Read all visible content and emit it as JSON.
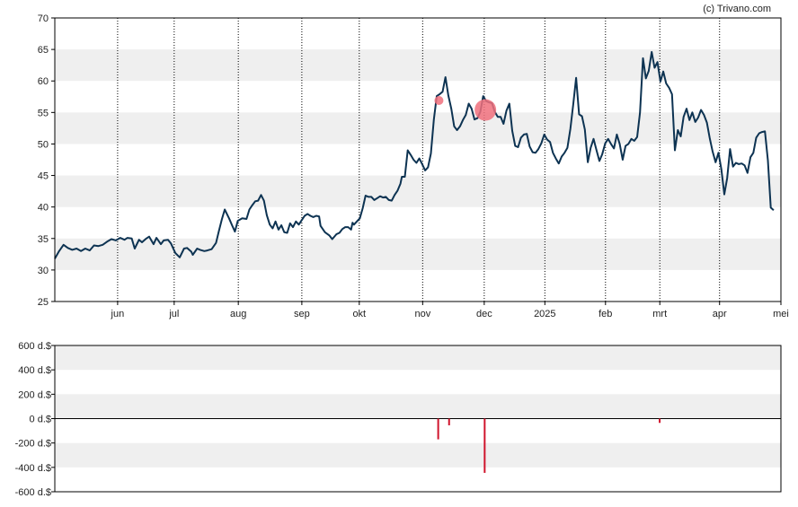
{
  "credit": "(c) Trivano.com",
  "colors": {
    "price_line": "#0d3352",
    "band": "#efefef",
    "insider_bar": "#d0142c",
    "marker": "#f0707d"
  },
  "chart_data": [
    {
      "type": "line",
      "name": "price",
      "title": "",
      "xlabel": "",
      "ylabel": "",
      "ylim": [
        25,
        70
      ],
      "yticks": [
        25,
        30,
        35,
        40,
        45,
        50,
        55,
        60,
        65,
        70
      ],
      "grid": "alternating horizontal bands, dotted vertical month lines",
      "x_ticks": [
        {
          "label": "jun",
          "pos": 0.0865
        },
        {
          "label": "jul",
          "pos": 0.1644
        },
        {
          "label": "aug",
          "pos": 0.2527
        },
        {
          "label": "sep",
          "pos": 0.3402
        },
        {
          "label": "okt",
          "pos": 0.4193
        },
        {
          "label": "nov",
          "pos": 0.5066
        },
        {
          "label": "dec",
          "pos": 0.5914
        },
        {
          "label": "2025",
          "pos": 0.6749
        },
        {
          "label": "feb",
          "pos": 0.7584
        },
        {
          "label": "mrt",
          "pos": 0.8332
        },
        {
          "label": "apr",
          "pos": 0.9155
        },
        {
          "label": "mei",
          "pos": 1.0
        }
      ],
      "points": [
        [
          0.0,
          31.8
        ],
        [
          0.006,
          33.0
        ],
        [
          0.012,
          34.0
        ],
        [
          0.018,
          33.5
        ],
        [
          0.024,
          33.2
        ],
        [
          0.03,
          33.4
        ],
        [
          0.036,
          33.0
        ],
        [
          0.042,
          33.4
        ],
        [
          0.048,
          33.1
        ],
        [
          0.054,
          33.9
        ],
        [
          0.06,
          33.8
        ],
        [
          0.066,
          34.0
        ],
        [
          0.072,
          34.5
        ],
        [
          0.078,
          34.9
        ],
        [
          0.084,
          34.7
        ],
        [
          0.09,
          35.1
        ],
        [
          0.096,
          34.8
        ],
        [
          0.1,
          35.1
        ],
        [
          0.106,
          35.0
        ],
        [
          0.11,
          33.4
        ],
        [
          0.116,
          34.8
        ],
        [
          0.12,
          34.4
        ],
        [
          0.126,
          35.0
        ],
        [
          0.13,
          35.3
        ],
        [
          0.136,
          34.1
        ],
        [
          0.14,
          35.1
        ],
        [
          0.146,
          34.1
        ],
        [
          0.15,
          34.7
        ],
        [
          0.156,
          34.8
        ],
        [
          0.16,
          34.2
        ],
        [
          0.166,
          32.7
        ],
        [
          0.172,
          32.0
        ],
        [
          0.178,
          33.4
        ],
        [
          0.182,
          33.5
        ],
        [
          0.188,
          32.9
        ],
        [
          0.19,
          32.4
        ],
        [
          0.196,
          33.4
        ],
        [
          0.2,
          33.2
        ],
        [
          0.206,
          33.0
        ],
        [
          0.21,
          33.1
        ],
        [
          0.216,
          33.3
        ],
        [
          0.222,
          34.3
        ],
        [
          0.226,
          36.2
        ],
        [
          0.23,
          38.0
        ],
        [
          0.234,
          39.6
        ],
        [
          0.24,
          38.2
        ],
        [
          0.244,
          37.1
        ],
        [
          0.248,
          36.1
        ],
        [
          0.252,
          37.8
        ],
        [
          0.258,
          38.2
        ],
        [
          0.264,
          38.1
        ],
        [
          0.268,
          39.6
        ],
        [
          0.272,
          40.3
        ],
        [
          0.276,
          40.9
        ],
        [
          0.28,
          41.0
        ],
        [
          0.284,
          41.9
        ],
        [
          0.288,
          41.0
        ],
        [
          0.292,
          38.7
        ],
        [
          0.296,
          37.2
        ],
        [
          0.3,
          36.6
        ],
        [
          0.304,
          37.7
        ],
        [
          0.308,
          36.4
        ],
        [
          0.312,
          37.1
        ],
        [
          0.316,
          36.0
        ],
        [
          0.32,
          35.9
        ],
        [
          0.324,
          37.4
        ],
        [
          0.328,
          36.8
        ],
        [
          0.332,
          37.7
        ],
        [
          0.336,
          37.2
        ],
        [
          0.34,
          37.9
        ],
        [
          0.344,
          38.6
        ],
        [
          0.348,
          38.9
        ],
        [
          0.352,
          38.6
        ],
        [
          0.356,
          38.4
        ],
        [
          0.36,
          38.6
        ],
        [
          0.364,
          38.5
        ],
        [
          0.366,
          37.0
        ],
        [
          0.372,
          36.0
        ],
        [
          0.378,
          35.5
        ],
        [
          0.382,
          34.9
        ],
        [
          0.388,
          35.7
        ],
        [
          0.392,
          35.9
        ],
        [
          0.396,
          36.5
        ],
        [
          0.4,
          36.8
        ],
        [
          0.404,
          36.8
        ],
        [
          0.408,
          36.4
        ],
        [
          0.41,
          37.5
        ],
        [
          0.412,
          37.2
        ],
        [
          0.416,
          37.7
        ],
        [
          0.42,
          38.2
        ],
        [
          0.424,
          39.8
        ],
        [
          0.428,
          41.8
        ],
        [
          0.432,
          41.6
        ],
        [
          0.436,
          41.6
        ],
        [
          0.44,
          41.1
        ],
        [
          0.444,
          41.4
        ],
        [
          0.448,
          41.7
        ],
        [
          0.452,
          41.5
        ],
        [
          0.456,
          41.6
        ],
        [
          0.46,
          41.1
        ],
        [
          0.464,
          41.0
        ],
        [
          0.468,
          41.9
        ],
        [
          0.472,
          42.6
        ],
        [
          0.476,
          43.7
        ],
        [
          0.478,
          44.8
        ],
        [
          0.482,
          44.8
        ],
        [
          0.486,
          49.0
        ],
        [
          0.49,
          48.3
        ],
        [
          0.494,
          47.5
        ],
        [
          0.498,
          47.0
        ],
        [
          0.502,
          47.7
        ],
        [
          0.506,
          46.8
        ],
        [
          0.51,
          45.8
        ],
        [
          0.514,
          46.3
        ],
        [
          0.518,
          48.5
        ],
        [
          0.522,
          53.9
        ],
        [
          0.526,
          57.6
        ],
        [
          0.53,
          57.9
        ],
        [
          0.534,
          58.3
        ],
        [
          0.538,
          60.6
        ],
        [
          0.542,
          57.7
        ],
        [
          0.546,
          55.6
        ],
        [
          0.55,
          52.8
        ],
        [
          0.554,
          52.2
        ],
        [
          0.558,
          52.8
        ],
        [
          0.562,
          53.8
        ],
        [
          0.566,
          54.6
        ],
        [
          0.57,
          56.4
        ],
        [
          0.574,
          55.6
        ],
        [
          0.578,
          53.9
        ],
        [
          0.582,
          54.1
        ],
        [
          0.586,
          55.1
        ],
        [
          0.59,
          57.6
        ],
        [
          0.594,
          56.8
        ],
        [
          0.598,
          56.6
        ],
        [
          0.602,
          56.5
        ],
        [
          0.606,
          55.1
        ],
        [
          0.61,
          54.3
        ],
        [
          0.614,
          54.3
        ],
        [
          0.618,
          53.2
        ],
        [
          0.622,
          55.3
        ],
        [
          0.626,
          56.4
        ],
        [
          0.63,
          52.1
        ],
        [
          0.634,
          49.7
        ],
        [
          0.638,
          49.5
        ],
        [
          0.642,
          51.0
        ],
        [
          0.646,
          51.5
        ],
        [
          0.65,
          51.6
        ],
        [
          0.654,
          49.6
        ],
        [
          0.658,
          48.7
        ],
        [
          0.662,
          48.6
        ],
        [
          0.666,
          49.2
        ],
        [
          0.67,
          50.1
        ],
        [
          0.674,
          51.5
        ],
        [
          0.678,
          50.7
        ],
        [
          0.682,
          50.3
        ],
        [
          0.686,
          48.6
        ],
        [
          0.69,
          47.7
        ],
        [
          0.694,
          46.9
        ],
        [
          0.698,
          48.0
        ],
        [
          0.702,
          48.6
        ],
        [
          0.706,
          49.4
        ],
        [
          0.71,
          52.4
        ],
        [
          0.714,
          56.3
        ],
        [
          0.718,
          60.5
        ],
        [
          0.722,
          54.7
        ],
        [
          0.726,
          54.4
        ],
        [
          0.73,
          52.3
        ],
        [
          0.734,
          47.1
        ],
        [
          0.738,
          49.4
        ],
        [
          0.742,
          50.8
        ],
        [
          0.746,
          49.0
        ],
        [
          0.75,
          47.3
        ],
        [
          0.754,
          48.4
        ],
        [
          0.758,
          50.1
        ],
        [
          0.762,
          50.8
        ],
        [
          0.766,
          50.0
        ],
        [
          0.77,
          49.3
        ],
        [
          0.774,
          51.5
        ],
        [
          0.778,
          50.0
        ],
        [
          0.782,
          47.5
        ],
        [
          0.786,
          49.7
        ],
        [
          0.79,
          50.0
        ],
        [
          0.794,
          50.8
        ],
        [
          0.798,
          50.5
        ],
        [
          0.802,
          51.1
        ],
        [
          0.806,
          55.0
        ],
        [
          0.81,
          63.6
        ],
        [
          0.814,
          60.4
        ],
        [
          0.818,
          61.6
        ],
        [
          0.822,
          64.6
        ],
        [
          0.826,
          62.1
        ],
        [
          0.83,
          63.0
        ],
        [
          0.834,
          59.9
        ],
        [
          0.838,
          61.5
        ],
        [
          0.842,
          59.6
        ],
        [
          0.846,
          58.9
        ],
        [
          0.85,
          57.9
        ],
        [
          0.854,
          49.0
        ],
        [
          0.858,
          52.2
        ],
        [
          0.862,
          51.2
        ],
        [
          0.866,
          54.3
        ],
        [
          0.87,
          55.6
        ],
        [
          0.874,
          53.8
        ],
        [
          0.878,
          55.0
        ],
        [
          0.882,
          53.5
        ],
        [
          0.886,
          54.2
        ],
        [
          0.89,
          55.4
        ],
        [
          0.894,
          54.6
        ],
        [
          0.898,
          53.4
        ],
        [
          0.902,
          50.9
        ],
        [
          0.906,
          48.8
        ],
        [
          0.91,
          47.1
        ],
        [
          0.914,
          48.6
        ],
        [
          0.918,
          46.0
        ],
        [
          0.922,
          42.0
        ],
        [
          0.926,
          44.6
        ],
        [
          0.93,
          49.2
        ],
        [
          0.934,
          46.4
        ],
        [
          0.938,
          47.0
        ],
        [
          0.942,
          46.8
        ],
        [
          0.946,
          46.9
        ],
        [
          0.95,
          46.6
        ],
        [
          0.954,
          45.4
        ],
        [
          0.958,
          47.9
        ],
        [
          0.962,
          48.6
        ],
        [
          0.966,
          51.0
        ],
        [
          0.97,
          51.7
        ],
        [
          0.974,
          51.9
        ],
        [
          0.978,
          52.0
        ],
        [
          0.982,
          47.4
        ],
        [
          0.986,
          39.9
        ],
        [
          0.99,
          39.5
        ]
      ],
      "markers": [
        {
          "pos": 0.529,
          "value": 56.9,
          "size": "small"
        },
        {
          "pos": 0.593,
          "value": 55.4,
          "size": "large"
        }
      ]
    },
    {
      "type": "bar",
      "name": "insider",
      "title": "",
      "xlabel": "",
      "ylabel": "",
      "ylim": [
        -600,
        600
      ],
      "yticks": [
        {
          "value": 600,
          "label": "600 d.$"
        },
        {
          "value": 400,
          "label": "400 d.$"
        },
        {
          "value": 200,
          "label": "200 d.$"
        },
        {
          "value": 0,
          "label": "0 d.$"
        },
        {
          "value": -200,
          "label": "-200 d.$"
        },
        {
          "value": -400,
          "label": "-400 d.$"
        },
        {
          "value": -600,
          "label": "-600 d.$"
        }
      ],
      "bars": [
        {
          "pos": 0.528,
          "value": -170
        },
        {
          "pos": 0.543,
          "value": -55
        },
        {
          "pos": 0.592,
          "value": -445
        },
        {
          "pos": 0.833,
          "value": -35
        }
      ]
    }
  ]
}
